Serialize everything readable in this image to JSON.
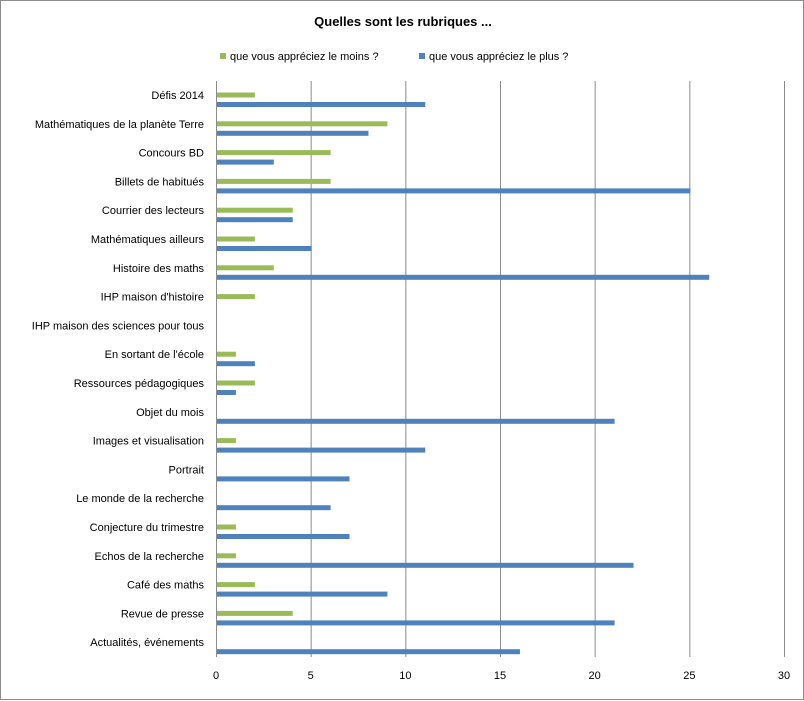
{
  "chart_data": {
    "type": "bar",
    "orientation": "horizontal",
    "title": "Quelles sont les rubriques ...",
    "xlabel": "",
    "ylabel": "",
    "xlim": [
      0,
      30
    ],
    "x_ticks": [
      0,
      5,
      10,
      15,
      20,
      25,
      30
    ],
    "grid": true,
    "legend_position": "top",
    "categories": [
      "Défis 2014",
      "Mathématiques de la planète Terre",
      "Concours BD",
      "Billets de habitués",
      "Courrier des lecteurs",
      "Mathématiques ailleurs",
      "Histoire des maths",
      "IHP maison d'histoire",
      "IHP maison des sciences pour tous",
      "En sortant de l'école",
      "Ressources pédagogiques",
      "Objet du mois",
      "Images et visualisation",
      "Portrait",
      "Le monde de la recherche",
      "Conjecture du trimestre",
      "Echos de la recherche",
      "Café des maths",
      "Revue de presse",
      "Actualités, événements"
    ],
    "series": [
      {
        "name": "que vous appréciez le moins ?",
        "color": "#9bbb59",
        "values": [
          2,
          9,
          6,
          6,
          4,
          2,
          3,
          2,
          0,
          1,
          2,
          0,
          1,
          0,
          0,
          1,
          1,
          2,
          4,
          0
        ]
      },
      {
        "name": "que vous appréciez le plus ?",
        "color": "#4f81bd",
        "values": [
          11,
          8,
          3,
          25,
          4,
          5,
          26,
          0,
          0,
          2,
          1,
          21,
          11,
          7,
          6,
          7,
          22,
          9,
          21,
          16
        ]
      }
    ]
  }
}
